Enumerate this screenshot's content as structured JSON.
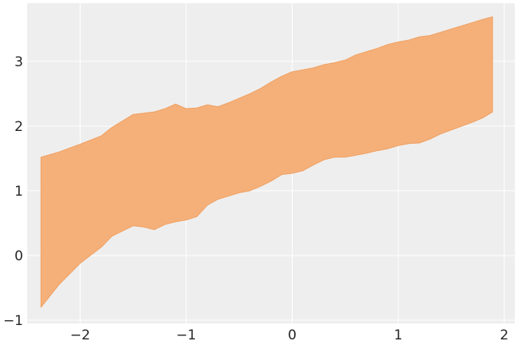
{
  "chart_data": {
    "type": "area",
    "title": "",
    "xlabel": "",
    "ylabel": "",
    "xlim": [
      -2.5,
      2.1
    ],
    "ylim": [
      -1.05,
      3.9
    ],
    "grid": true,
    "x_ticks": [
      -2,
      -1,
      0,
      1,
      2
    ],
    "y_ticks": [
      -1,
      0,
      1,
      2,
      3
    ],
    "x_tick_labels": [
      "−2",
      "−1",
      "0",
      "1",
      "2"
    ],
    "y_tick_labels": [
      "−1",
      "0",
      "1",
      "2",
      "3"
    ],
    "band_color": "#f5b07a",
    "band_edge_color": "#f0a060",
    "plot_bg_color": "#eeeeee",
    "series": [
      {
        "x": [
          -2.37,
          -2.2,
          -2.0,
          -1.8,
          -1.7,
          -1.5,
          -1.4,
          -1.3,
          -1.2,
          -1.1,
          -1.0,
          -0.9,
          -0.8,
          -0.7,
          -0.6,
          -0.5,
          -0.4,
          -0.3,
          -0.2,
          -0.1,
          0.0,
          0.1,
          0.2,
          0.3,
          0.4,
          0.5,
          0.6,
          0.7,
          0.8,
          0.9,
          1.0,
          1.1,
          1.2,
          1.3,
          1.4,
          1.5,
          1.6,
          1.7,
          1.8,
          1.89
        ],
        "lower": [
          -0.8,
          -0.45,
          -0.12,
          0.13,
          0.3,
          0.46,
          0.44,
          0.4,
          0.48,
          0.52,
          0.55,
          0.6,
          0.78,
          0.87,
          0.92,
          0.97,
          1.0,
          1.07,
          1.15,
          1.25,
          1.27,
          1.31,
          1.4,
          1.48,
          1.52,
          1.52,
          1.55,
          1.58,
          1.62,
          1.65,
          1.7,
          1.73,
          1.74,
          1.8,
          1.88,
          1.94,
          2.0,
          2.06,
          2.13,
          2.22
        ],
        "upper": [
          1.52,
          1.6,
          1.72,
          1.85,
          1.98,
          2.18,
          2.2,
          2.22,
          2.27,
          2.34,
          2.27,
          2.28,
          2.33,
          2.3,
          2.36,
          2.43,
          2.5,
          2.58,
          2.68,
          2.77,
          2.84,
          2.87,
          2.9,
          2.95,
          2.98,
          3.02,
          3.1,
          3.15,
          3.2,
          3.26,
          3.3,
          3.33,
          3.38,
          3.4,
          3.45,
          3.5,
          3.55,
          3.6,
          3.65,
          3.69
        ]
      }
    ]
  }
}
